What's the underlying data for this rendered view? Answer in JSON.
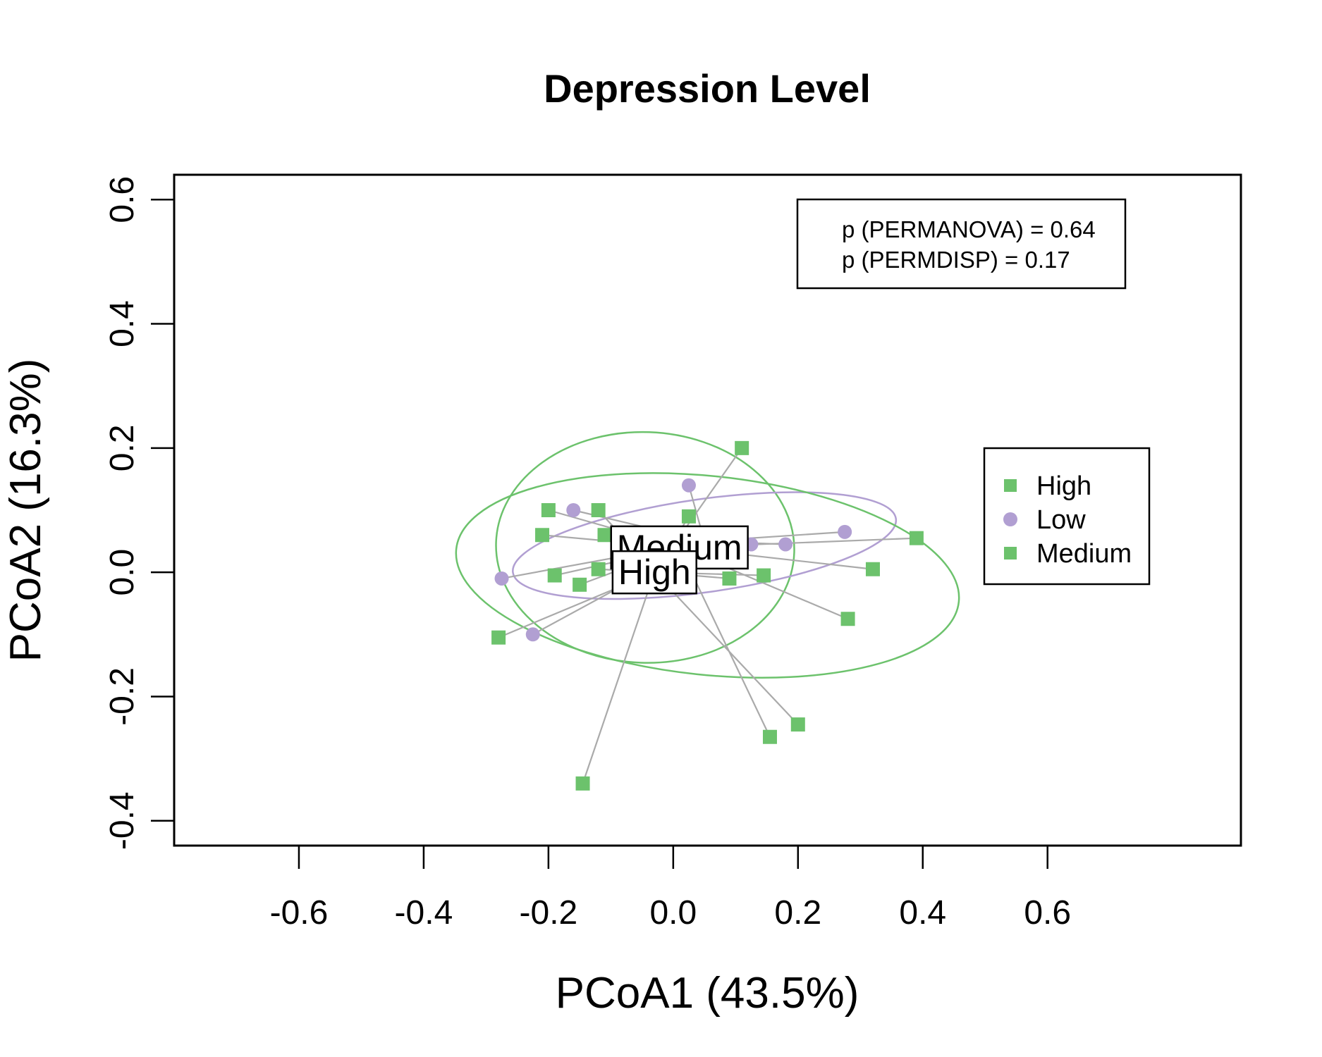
{
  "chart_data": {
    "type": "scatter",
    "title": "Depression Level",
    "xlabel": "PCoA1 (43.5%)",
    "ylabel": "PCoA2 (16.3%)",
    "xlim": [
      -0.8,
      0.91
    ],
    "ylim": [
      -0.44,
      0.64
    ],
    "xticks": [
      -0.6,
      -0.4,
      -0.2,
      0.0,
      0.2,
      0.4,
      0.6
    ],
    "xtick_labels": [
      "-0.6",
      "-0.4",
      "-0.2",
      "0.0",
      "0.2",
      "0.4",
      "0.6"
    ],
    "yticks": [
      -0.4,
      -0.2,
      0.0,
      0.2,
      0.4,
      0.6
    ],
    "ytick_labels": [
      "-0.4",
      "-0.2",
      "0.0",
      "0.2",
      "0.4",
      "0.6"
    ],
    "grid": false,
    "legend_position": "right",
    "stats": [
      "p (PERMANOVA) = 0.64",
      "p (PERMDISP) = 0.17"
    ],
    "legend": [
      {
        "label": "High",
        "marker": "square",
        "color": "#6cc26c"
      },
      {
        "label": "Low",
        "marker": "circle",
        "color": "#b19fd2"
      },
      {
        "label": "Medium",
        "marker": "square",
        "color": "#6cc26c"
      }
    ],
    "series": [
      {
        "name": "High",
        "marker": "square",
        "color": "#6cc26c",
        "centroid": [
          -0.03,
          0.0
        ],
        "centroid_label": "High",
        "ellipse": {
          "cx": -0.045,
          "cy": 0.04,
          "rx": 0.185,
          "ry": 0.24,
          "angle_deg": 88
        },
        "points": [
          {
            "x": 0.11,
            "y": 0.2
          },
          {
            "x": -0.12,
            "y": 0.1
          },
          {
            "x": 0.025,
            "y": 0.09
          },
          {
            "x": -0.11,
            "y": 0.06
          },
          {
            "x": -0.12,
            "y": 0.005
          },
          {
            "x": 0.09,
            "y": -0.01
          },
          {
            "x": 0.145,
            "y": -0.005
          },
          {
            "x": -0.28,
            "y": -0.105
          },
          {
            "x": 0.2,
            "y": -0.245
          },
          {
            "x": -0.145,
            "y": -0.34
          }
        ]
      },
      {
        "name": "Low",
        "marker": "circle",
        "color": "#b19fd2",
        "centroid": [
          0.05,
          0.05
        ],
        "ellipse": {
          "cx": 0.05,
          "cy": 0.043,
          "rx": 0.31,
          "ry": 0.075,
          "angle_deg": 8
        },
        "points": [
          {
            "x": 0.025,
            "y": 0.14
          },
          {
            "x": -0.16,
            "y": 0.1
          },
          {
            "x": 0.275,
            "y": 0.065
          },
          {
            "x": 0.18,
            "y": 0.045
          },
          {
            "x": 0.125,
            "y": 0.045
          },
          {
            "x": -0.275,
            "y": -0.01
          },
          {
            "x": -0.225,
            "y": -0.1
          }
        ]
      },
      {
        "name": "Medium",
        "marker": "square",
        "color": "#6cc26c",
        "centroid": [
          0.01,
          0.04
        ],
        "centroid_label": "Medium",
        "ellipse": {
          "cx": 0.055,
          "cy": -0.005,
          "rx": 0.405,
          "ry": 0.16,
          "angle_deg": -6
        },
        "points": [
          {
            "x": -0.2,
            "y": 0.1
          },
          {
            "x": -0.21,
            "y": 0.06
          },
          {
            "x": 0.39,
            "y": 0.055
          },
          {
            "x": 0.32,
            "y": 0.005
          },
          {
            "x": -0.19,
            "y": -0.005
          },
          {
            "x": -0.15,
            "y": -0.02
          },
          {
            "x": 0.28,
            "y": -0.075
          },
          {
            "x": 0.155,
            "y": -0.265
          }
        ]
      }
    ]
  }
}
